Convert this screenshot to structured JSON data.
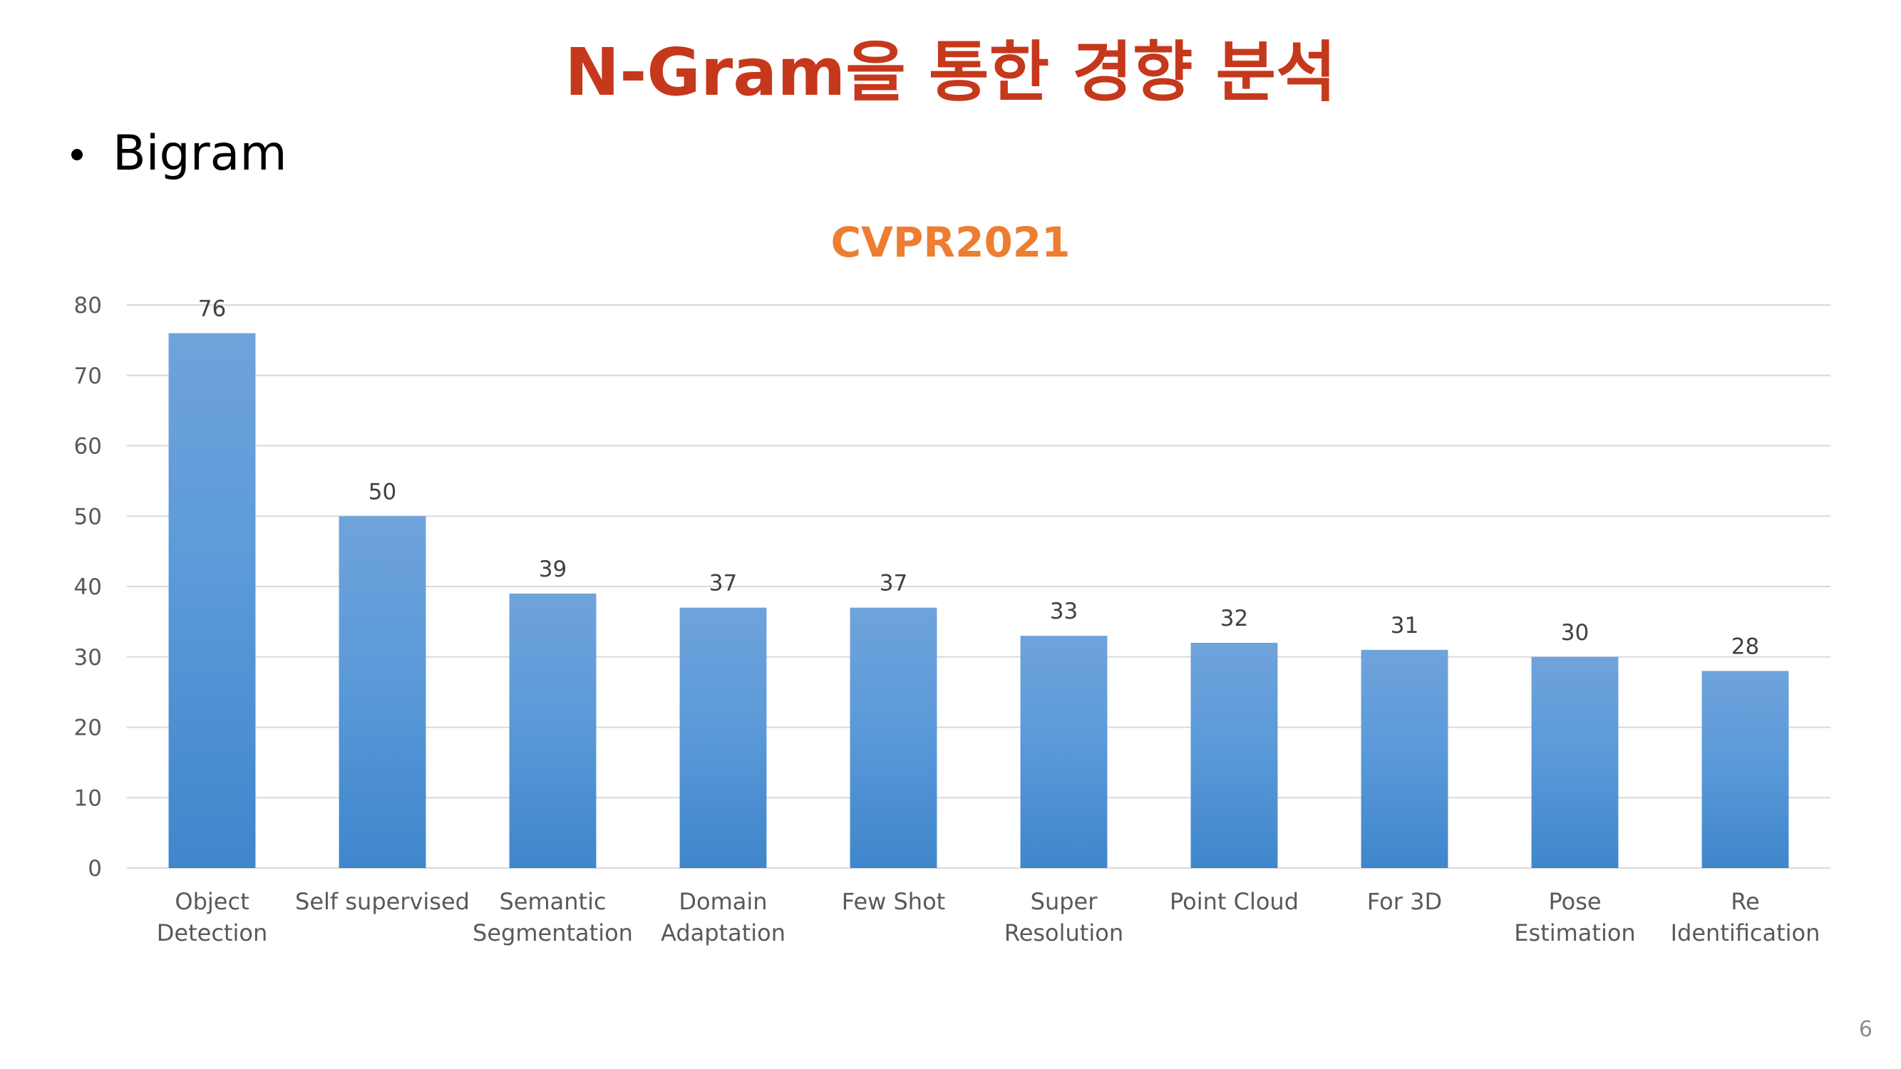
{
  "slide": {
    "title": "N-Gram을 통한 경향 분석",
    "bullet": "Bigram",
    "page_number": "6"
  },
  "colors": {
    "title": "#c5381b",
    "chart_title": "#ed7d31",
    "bar_top": "#6fa3db",
    "bar_mid": "#5b9ad9",
    "bar_bottom": "#3f86cc",
    "grid": "#d9d9d9",
    "axis_text": "#595959",
    "label_text": "#404040"
  },
  "chart_data": {
    "type": "bar",
    "title": "CVPR2021",
    "categories": [
      [
        "Object",
        "Detection"
      ],
      [
        "Self supervised"
      ],
      [
        "Semantic",
        "Segmentation"
      ],
      [
        "Domain",
        "Adaptation"
      ],
      [
        "Few Shot"
      ],
      [
        "Super",
        "Resolution"
      ],
      [
        "Point Cloud"
      ],
      [
        "For 3D"
      ],
      [
        "Pose",
        "Estimation"
      ],
      [
        "Re",
        "Identification"
      ]
    ],
    "values": [
      76,
      50,
      39,
      37,
      37,
      33,
      32,
      31,
      30,
      28
    ],
    "ylim": [
      0,
      80
    ],
    "yticks": [
      0,
      10,
      20,
      30,
      40,
      50,
      60,
      70,
      80
    ],
    "grid": true,
    "data_labels": true,
    "legend": "none"
  }
}
